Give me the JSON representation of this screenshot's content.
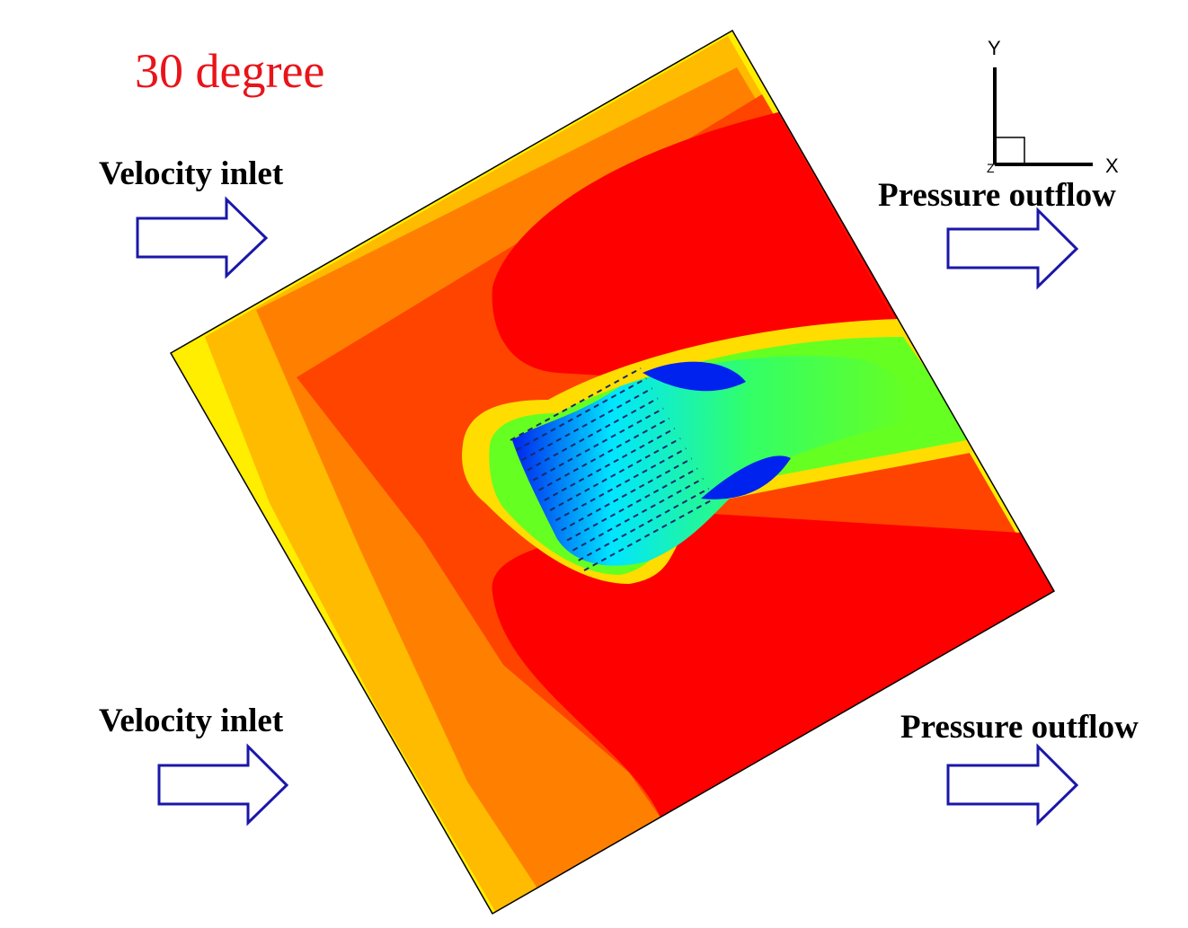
{
  "title": "30 degree",
  "boundary_labels": {
    "inlet_top": "Velocity inlet",
    "inlet_bottom": "Velocity inlet",
    "outlet_top": "Pressure outflow",
    "outlet_bottom": "Pressure outflow"
  },
  "axes": {
    "x_label": "X",
    "y_label": "Y",
    "z_label": "Z"
  },
  "colors": {
    "title": "#e8141a",
    "arrow_stroke": "#1a17a8",
    "band_yellow": "#ffee00",
    "band_light_orange": "#ffbb00",
    "band_orange": "#ff8000",
    "band_red_orange": "#ff4400",
    "field_red": "#ff0000",
    "wake_yellow": "#ffdd00",
    "wake_green": "#33ff22",
    "wake_cyan": "#00ffdd",
    "wake_blue": "#0022ee"
  }
}
